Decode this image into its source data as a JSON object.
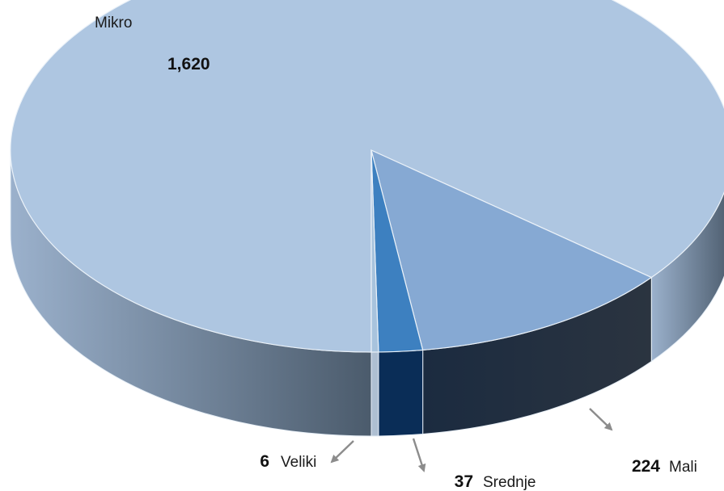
{
  "chart_data": {
    "type": "pie",
    "style": "3d",
    "categories": [
      "Mikro",
      "Mali",
      "Srednje",
      "Veliki"
    ],
    "values": [
      1620,
      224,
      37,
      6
    ],
    "value_labels": [
      "1,620",
      "224",
      "37",
      "6"
    ],
    "colors": {
      "Mikro": "#aec6e1",
      "Mali": "#86a9d3",
      "Srednje": "#3d80c0",
      "Veliki": "#a8c3dd"
    },
    "side_colors": {
      "Mikro": [
        "#9bb1cc",
        "#4b5b6c"
      ],
      "Mali": [
        "#1b2b40",
        "#2b3440"
      ],
      "Srednje": [
        "#0a2d57",
        "#0a2d57"
      ],
      "Veliki": [
        "#aebfd2",
        "#aebfd2"
      ]
    },
    "leader_color": "#8c8c8c",
    "legend": "none"
  }
}
